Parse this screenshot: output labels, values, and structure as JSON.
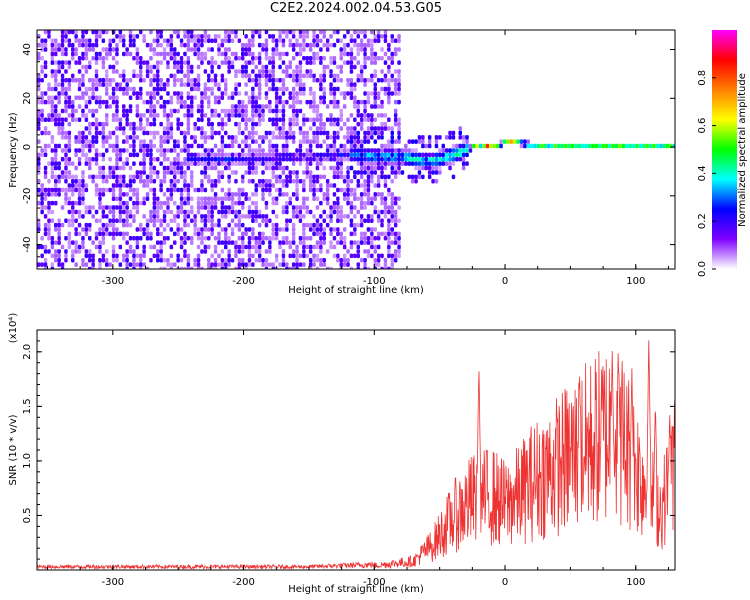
{
  "title": "C2E2.2024.002.04.53.G05",
  "chart_data": [
    {
      "type": "heatmap",
      "xlabel": "Height of straight line (km)",
      "ylabel": "Frequency (Hz)",
      "xlim": [
        -358,
        130
      ],
      "ylim": [
        -50,
        48
      ],
      "x_ticks": [
        -300,
        -200,
        -100,
        0,
        100
      ],
      "y_ticks": [
        -40,
        -20,
        0,
        20,
        40
      ],
      "colorbar": {
        "label": "Normalized spectral amplitude",
        "range": [
          0.0,
          1.0
        ],
        "ticks": [
          0.0,
          0.2,
          0.4,
          0.6,
          0.8
        ],
        "colors": [
          "#ffffff",
          "#7f00ff",
          "#0000ff",
          "#00ffff",
          "#00ff00",
          "#ffff00",
          "#ff7f00",
          "#ff0000",
          "#ff00ff"
        ]
      },
      "signal_track": [
        [
          -240,
          -5
        ],
        [
          -200,
          -5
        ],
        [
          -150,
          -4
        ],
        [
          -120,
          -3
        ],
        [
          -100,
          -4
        ],
        [
          -80,
          -4
        ],
        [
          -60,
          -6
        ],
        [
          -45,
          -4
        ],
        [
          -30,
          -1
        ],
        [
          -20,
          1
        ],
        [
          -10,
          0
        ],
        [
          0,
          2
        ],
        [
          20,
          1
        ],
        [
          60,
          1
        ],
        [
          100,
          1
        ],
        [
          130,
          1
        ]
      ]
    },
    {
      "type": "line",
      "xlabel": "Height of straight line (km)",
      "ylabel": "SNR (10 * v/v)",
      "y_multiplier": "(x10⁴)",
      "xlim": [
        -358,
        130
      ],
      "ylim": [
        0,
        2.2
      ],
      "x_ticks": [
        -300,
        -200,
        -100,
        0,
        100
      ],
      "y_ticks": [
        0.5,
        1.0,
        1.5,
        2.0
      ],
      "color": "#ee3333",
      "envelope": [
        [
          -358,
          0.03
        ],
        [
          -150,
          0.03
        ],
        [
          -100,
          0.05
        ],
        [
          -70,
          0.1
        ],
        [
          -55,
          0.3
        ],
        [
          -40,
          0.6
        ],
        [
          -25,
          0.8
        ],
        [
          -10,
          0.85
        ],
        [
          0,
          0.75
        ],
        [
          10,
          0.85
        ],
        [
          20,
          1.0
        ],
        [
          40,
          1.2
        ],
        [
          60,
          1.4
        ],
        [
          80,
          1.6
        ],
        [
          90,
          1.5
        ],
        [
          100,
          1.2
        ],
        [
          110,
          0.9
        ],
        [
          120,
          0.7
        ],
        [
          130,
          1.3
        ]
      ],
      "peaks": [
        [
          -20,
          1.9
        ],
        [
          57,
          1.85
        ],
        [
          82,
          2.05
        ],
        [
          87,
          1.95
        ],
        [
          97,
          1.85
        ],
        [
          110,
          2.15
        ],
        [
          115,
          1.55
        ],
        [
          126,
          1.45
        ]
      ]
    }
  ]
}
